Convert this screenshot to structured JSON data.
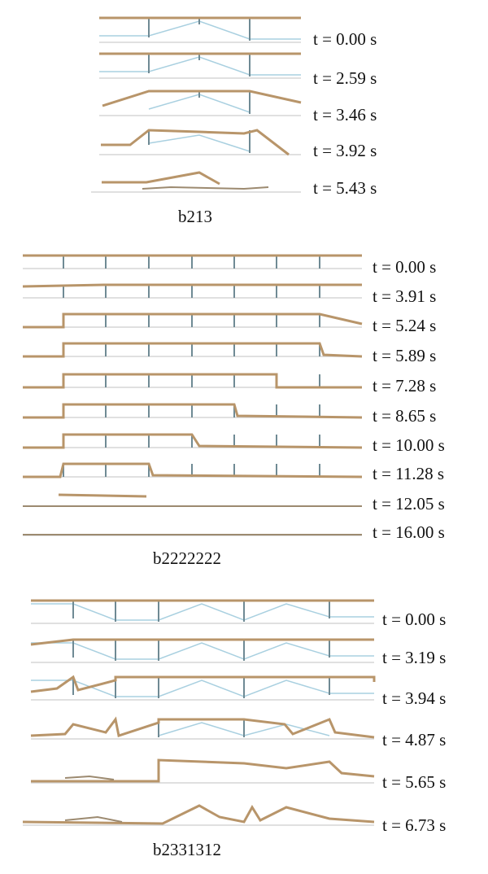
{
  "groups": [
    {
      "label": "b213",
      "frames": [
        "t = 0.00 s",
        "t = 2.59 s",
        "t = 3.46 s",
        "t = 3.92 s",
        "t = 5.43 s"
      ]
    },
    {
      "label": "b2222222",
      "frames": [
        "t = 0.00 s",
        "t = 3.91 s",
        "t = 5.24 s",
        "t = 5.89 s",
        "t = 7.28 s",
        "t = 8.65 s",
        "t = 10.00 s",
        "t = 11.28 s",
        "t = 12.05 s",
        "t = 16.00 s"
      ]
    },
    {
      "label": "b2331312",
      "frames": [
        "t = 0.00 s",
        "t = 3.19 s",
        "t = 3.94 s",
        "t = 4.87 s",
        "t = 5.65 s",
        "t = 6.73 s"
      ]
    }
  ]
}
